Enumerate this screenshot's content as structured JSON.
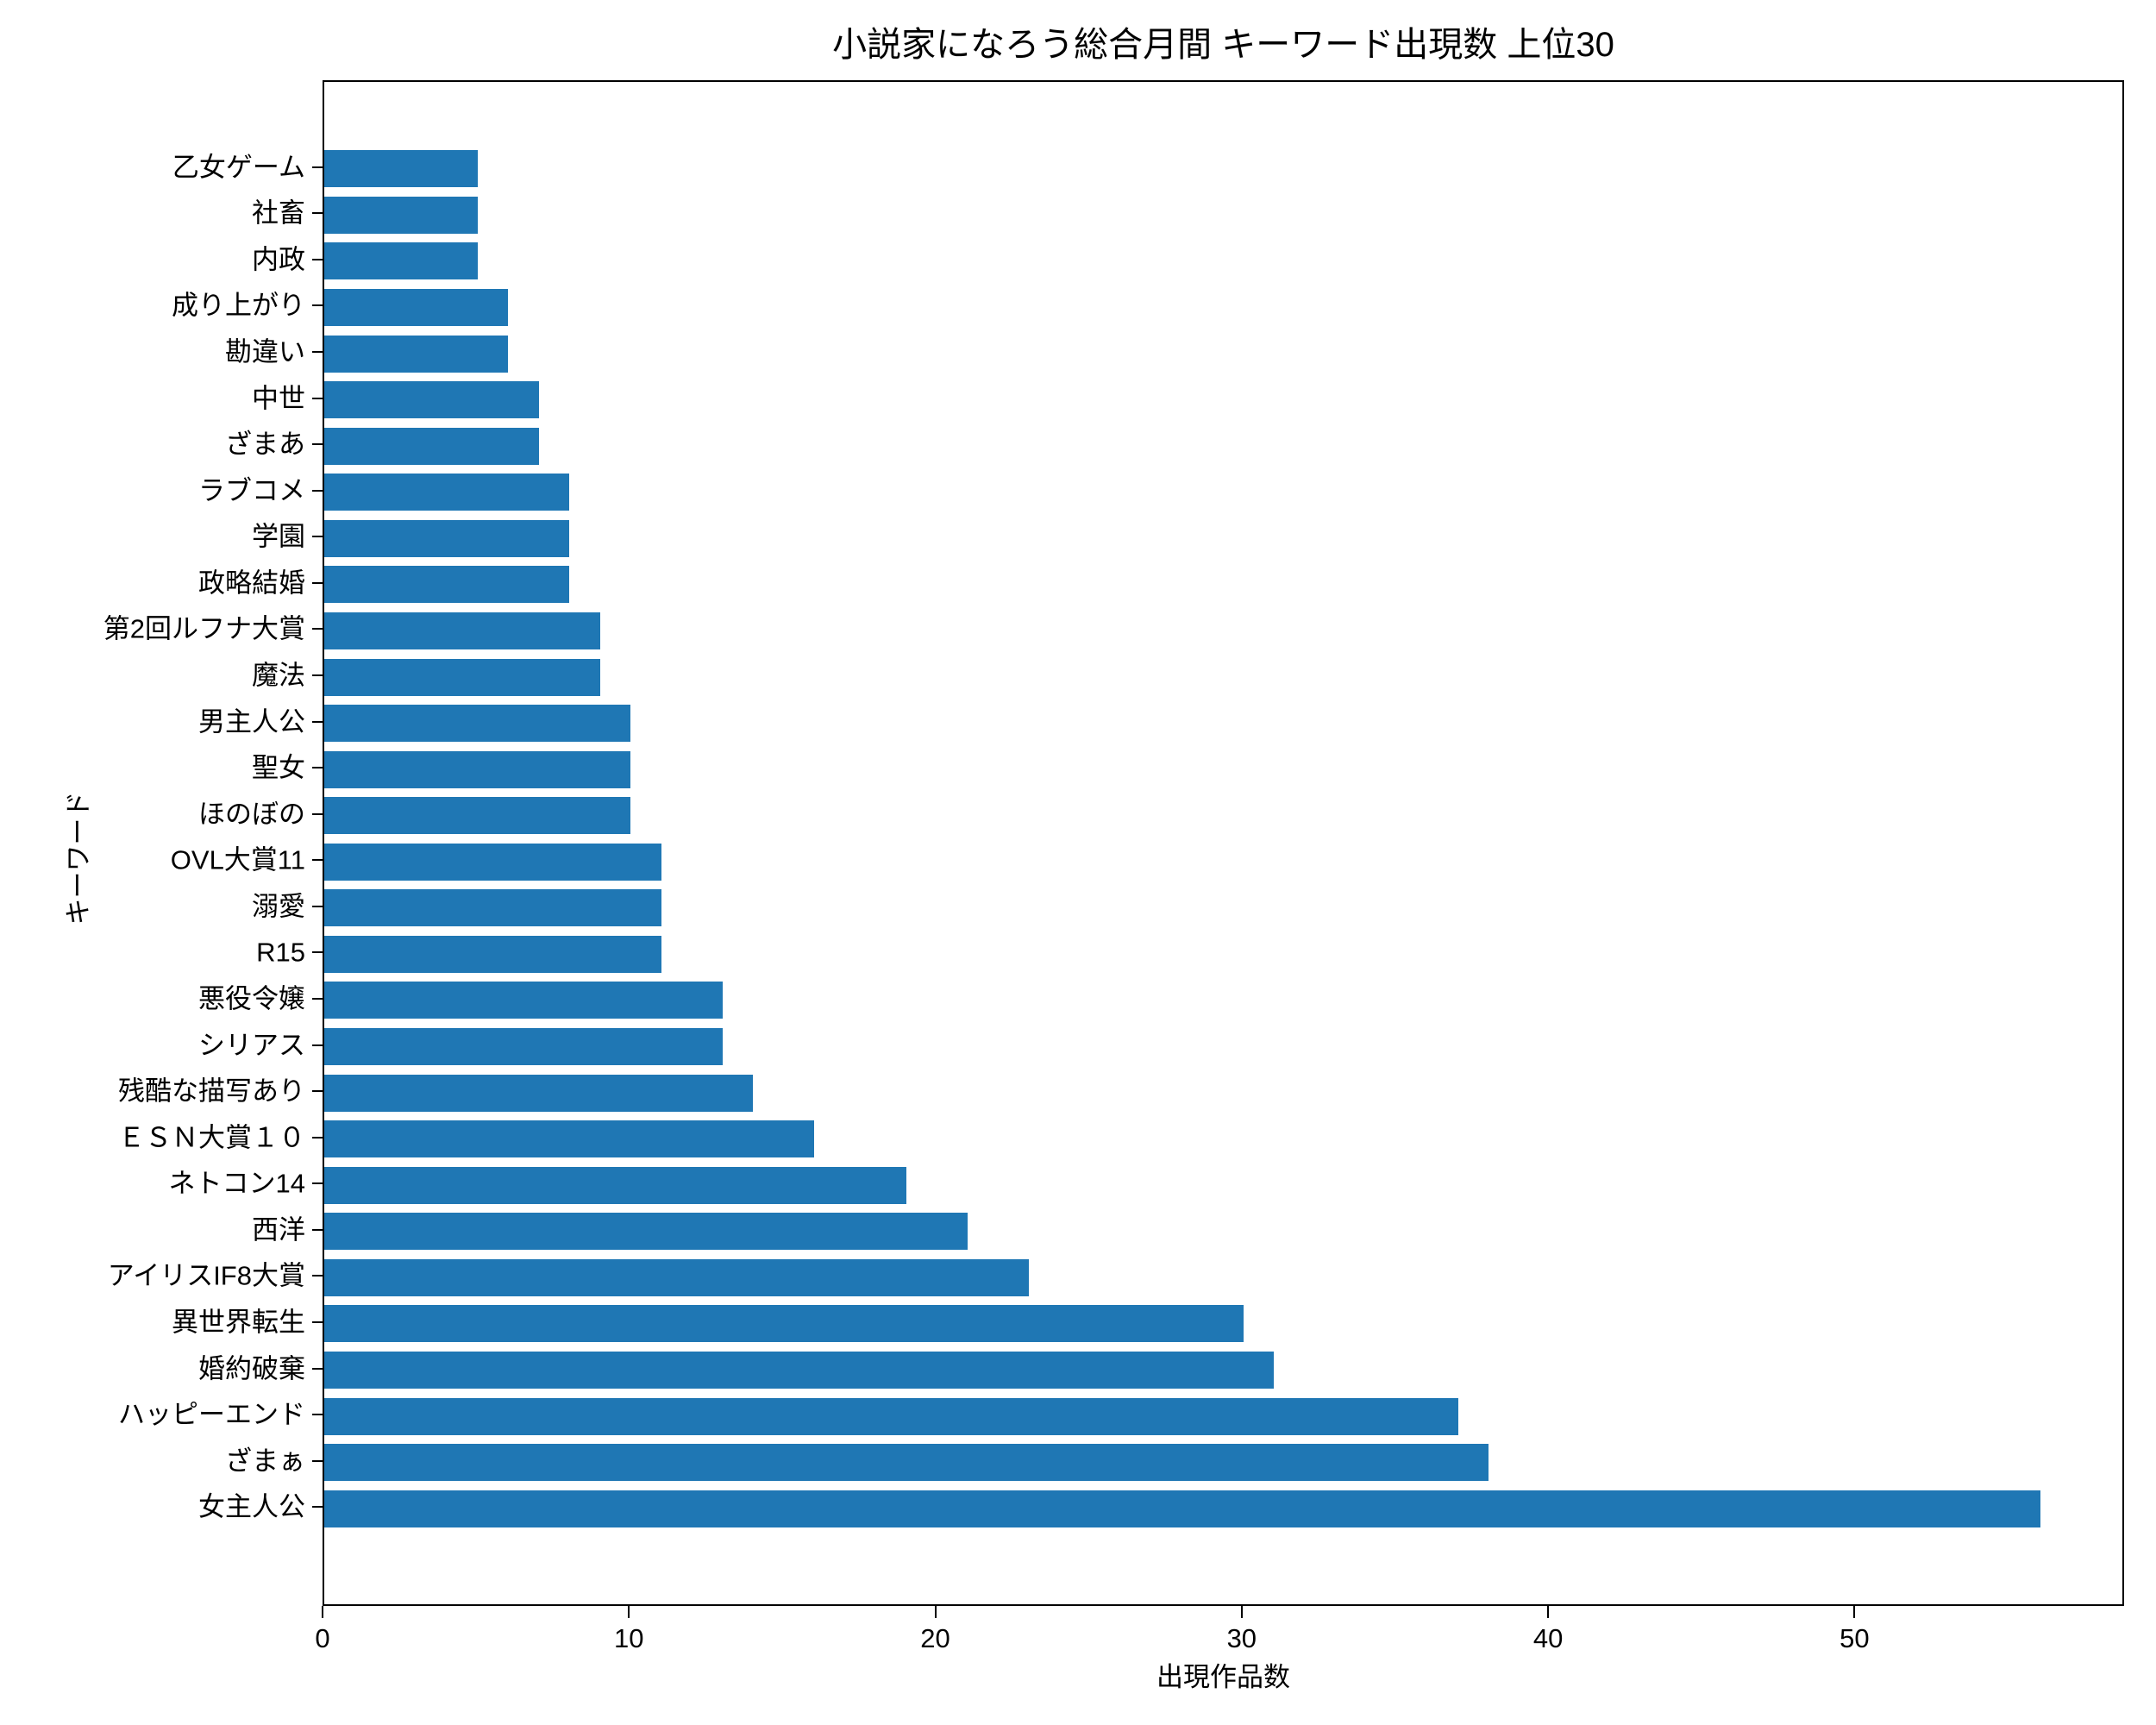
{
  "chart_data": {
    "type": "bar",
    "orientation": "horizontal",
    "title": "小説家になろう総合月間 キーワード出現数 上位30",
    "xlabel": "出現作品数",
    "ylabel": "キーワード",
    "categories": [
      "乙女ゲーム",
      "社畜",
      "内政",
      "成り上がり",
      "勘違い",
      "中世",
      "ざまあ",
      "ラブコメ",
      "学園",
      "政略結婚",
      "第2回ルフナ大賞",
      "魔法",
      "男主人公",
      "聖女",
      "ほのぼの",
      "OVL大賞11",
      "溺愛",
      "R15",
      "悪役令嬢",
      "シリアス",
      "残酷な描写あり",
      "ＥＳＮ大賞１０",
      "ネトコン14",
      "西洋",
      "アイリスIF8大賞",
      "異世界転生",
      "婚約破棄",
      "ハッピーエンド",
      "ざまぁ",
      "女主人公"
    ],
    "values": [
      5,
      5,
      5,
      6,
      6,
      7,
      7,
      8,
      8,
      8,
      9,
      9,
      10,
      10,
      10,
      11,
      11,
      11,
      13,
      13,
      14,
      16,
      19,
      21,
      23,
      30,
      31,
      37,
      38,
      56
    ],
    "xlim": [
      0,
      58.8
    ],
    "xticks": [
      0,
      10,
      20,
      30,
      40,
      50
    ],
    "bar_color": "#1f77b4",
    "grid": false,
    "legend_position": "none"
  }
}
